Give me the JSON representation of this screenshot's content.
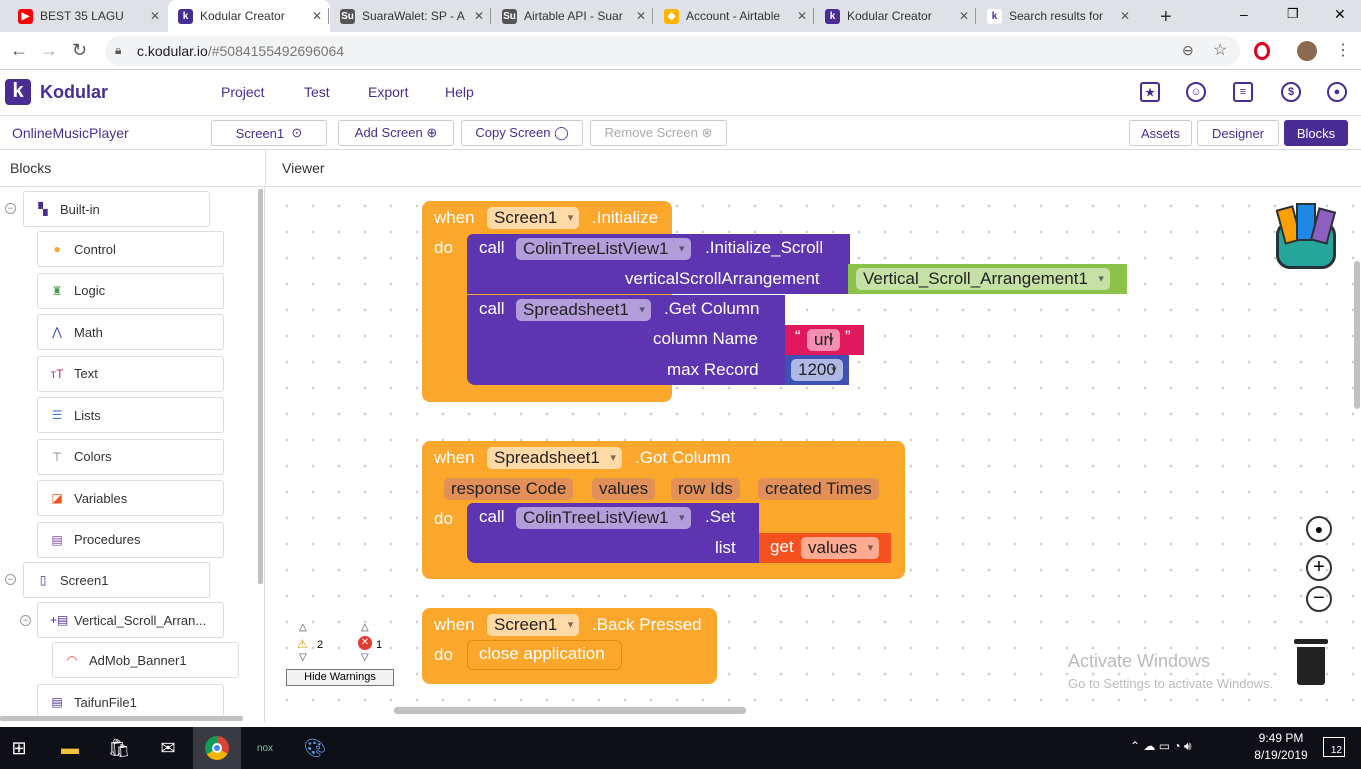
{
  "browser": {
    "tabs": [
      {
        "title": "BEST 35 LAGU",
        "icon": "youtube-icon",
        "color": "#ff0000",
        "glyph": "▶"
      },
      {
        "title": "Kodular Creator",
        "icon": "kodular-icon",
        "color": "#4a2d94",
        "glyph": "k",
        "active": true
      },
      {
        "title": "SuaraWalet: SP - A",
        "icon": "su-icon",
        "color": "#555",
        "glyph": "Su"
      },
      {
        "title": "Airtable API - Suar",
        "icon": "su-icon",
        "color": "#555",
        "glyph": "Su"
      },
      {
        "title": "Account - Airtable",
        "icon": "airtable-icon",
        "color": "#fcb400",
        "glyph": "◆"
      },
      {
        "title": "Kodular Creator",
        "icon": "kodular-icon",
        "color": "#4a2d94",
        "glyph": "k"
      },
      {
        "title": "Search results for",
        "icon": "kodular-icon",
        "color": "#ffffff",
        "glyph": "k"
      }
    ],
    "url_host": "c.kodular.io",
    "url_rest": "/#5084155492696064"
  },
  "app": {
    "brand": "Kodular",
    "menu": [
      "Project",
      "Test",
      "Export",
      "Help"
    ],
    "project": "OnlineMusicPlayer",
    "screen": "Screen1",
    "add_screen": "Add Screen ⊕",
    "copy_screen": "Copy Screen ◯",
    "remove_screen": "Remove Screen ⊗",
    "assets": "Assets",
    "designer": "Designer",
    "blocks": "Blocks",
    "blocks_heading": "Blocks",
    "viewer_heading": "Viewer"
  },
  "sidebar": {
    "builtin": "Built-in",
    "items": [
      {
        "label": "Control",
        "glyph": "●",
        "color": "#fba72c"
      },
      {
        "label": "Logic",
        "glyph": "♜",
        "color": "#43a047"
      },
      {
        "label": "Math",
        "glyph": "⋀",
        "color": "#3f51b5"
      },
      {
        "label": "Text",
        "glyph": "ᴛT",
        "color": "#e0195e"
      },
      {
        "label": "Lists",
        "glyph": "☰",
        "color": "#3f7dd9"
      },
      {
        "label": "Colors",
        "glyph": "⊤",
        "color": "#777"
      },
      {
        "label": "Variables",
        "glyph": "◪",
        "color": "#f4511e"
      },
      {
        "label": "Procedures",
        "glyph": "▤",
        "color": "#7b3fa8"
      }
    ],
    "screen": "Screen1",
    "vsa": "Vertical_Scroll_Arran...",
    "admob": "AdMob_Banner1",
    "taifun": "TaifunFile1"
  },
  "blocks": {
    "b1": {
      "when": "when",
      "comp": "Screen1",
      "event": ".Initialize",
      "do": "do",
      "call": "call",
      "c1": "ColinTreeListView1",
      "m1": ".Initialize_Scroll",
      "arg1": "verticalScrollArrangement",
      "v1": "Vertical_Scroll_Arrangement1",
      "c2": "Spreadsheet1",
      "m2": ".Get Column",
      "arg2": "column Name",
      "v2": "url",
      "arg3": "max Record",
      "v3": "1200"
    },
    "b2": {
      "when": "when",
      "comp": "Spreadsheet1",
      "event": ".Got Column",
      "params": [
        "response Code",
        "values",
        "row Ids",
        "created Times"
      ],
      "do": "do",
      "call": "call",
      "c1": "ColinTreeListView1",
      "m1": ".Set",
      "arg1": "list",
      "get": "get",
      "v1": "values"
    },
    "b3": {
      "when": "when",
      "comp": "Screen1",
      "event": ".Back Pressed",
      "do": "do",
      "action": "close application"
    }
  },
  "warnings": {
    "warn_count": "2",
    "error_count": "1",
    "hide": "Hide Warnings"
  },
  "watermark": {
    "line1": "Activate Windows",
    "line2": "Go to Settings to activate Windows."
  },
  "taskbar": {
    "time": "9:49 PM",
    "date": "8/19/2019",
    "notifications": "12"
  }
}
